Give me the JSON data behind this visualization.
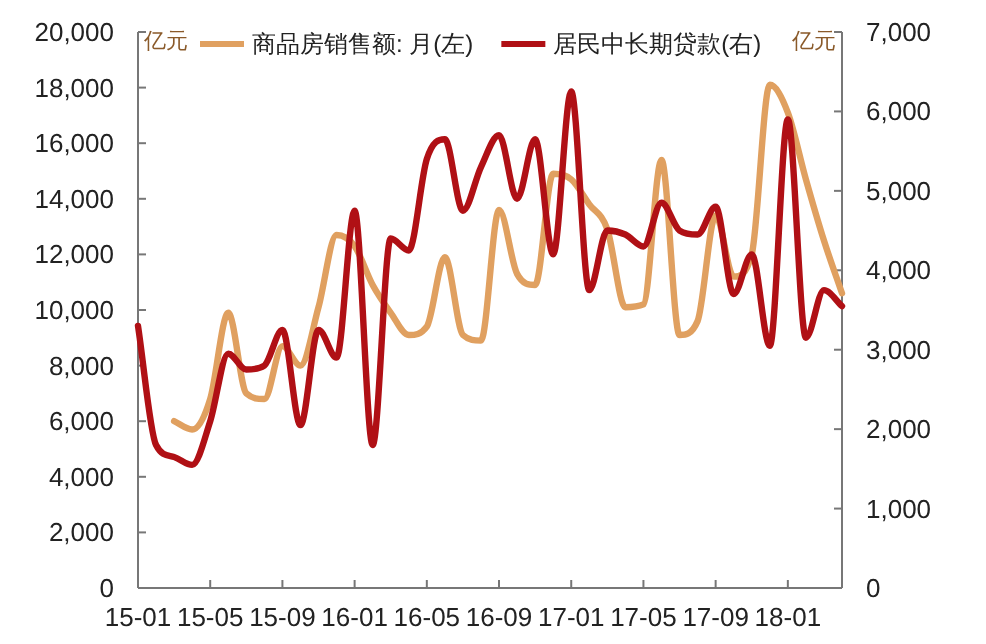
{
  "chart_data": {
    "type": "line",
    "ylabel": "亿元",
    "y2label": "亿元",
    "legend": "top",
    "grid": false,
    "marker": "none",
    "line_style": "solid",
    "categories": [
      "15-01",
      null,
      null,
      null,
      "15-05",
      null,
      null,
      null,
      "15-09",
      null,
      null,
      null,
      "16-01",
      null,
      null,
      null,
      "16-05",
      null,
      null,
      null,
      "16-09",
      null,
      null,
      null,
      "17-01",
      null,
      null,
      null,
      "17-05",
      null,
      null,
      null,
      "17-09",
      null,
      null,
      null,
      "18-01",
      null,
      null,
      null
    ],
    "ylim": [
      0,
      20000
    ],
    "yticks": [
      {
        "value": 0,
        "label": "0"
      },
      {
        "value": 2000,
        "label": "2,000"
      },
      {
        "value": 4000,
        "label": "4,000"
      },
      {
        "value": 6000,
        "label": "6,000"
      },
      {
        "value": 8000,
        "label": "8,000"
      },
      {
        "value": 10000,
        "label": "10,000"
      },
      {
        "value": 12000,
        "label": "12,000"
      },
      {
        "value": 14000,
        "label": "14,000"
      },
      {
        "value": 16000,
        "label": "16,000"
      },
      {
        "value": 18000,
        "label": "18,000"
      },
      {
        "value": 20000,
        "label": "20,000"
      }
    ],
    "y2lim": [
      0,
      7000
    ],
    "y2ticks": [
      {
        "value": 0,
        "label": "0"
      },
      {
        "value": 1000,
        "label": "1,000"
      },
      {
        "value": 2000,
        "label": "2,000"
      },
      {
        "value": 3000,
        "label": "3,000"
      },
      {
        "value": 4000,
        "label": "4,000"
      },
      {
        "value": 5000,
        "label": "5,000"
      },
      {
        "value": 6000,
        "label": "6,000"
      },
      {
        "value": 7000,
        "label": "7,000"
      }
    ],
    "series": [
      {
        "name": "商品房销售额: 月(左)",
        "color": "#e0a060",
        "values": [
          null,
          null,
          6000,
          5700,
          6800,
          9900,
          7000,
          6800,
          8700,
          8000,
          10100,
          12700,
          12300,
          10900,
          9900,
          9100,
          9400,
          11900,
          9100,
          8900,
          13600,
          11300,
          10900,
          14900,
          14700,
          13800,
          12900,
          10100,
          10200,
          15400,
          9100,
          9600,
          13400,
          11200,
          12000,
          18100,
          17100,
          14700,
          12500,
          10600
        ]
      },
      {
        "name": "居民中长期贷款(右)",
        "color": "#b01015",
        "axis": "y2",
        "values": [
          3300,
          1800,
          1650,
          1550,
          2100,
          2950,
          2750,
          2800,
          3250,
          2050,
          3250,
          2900,
          4750,
          1800,
          4400,
          4250,
          5400,
          5650,
          4750,
          5300,
          5700,
          4900,
          5650,
          4200,
          6250,
          3750,
          4500,
          4450,
          4300,
          4850,
          4500,
          4450,
          4800,
          3700,
          4200,
          3050,
          5900,
          3150,
          3750,
          3550
        ]
      }
    ]
  }
}
